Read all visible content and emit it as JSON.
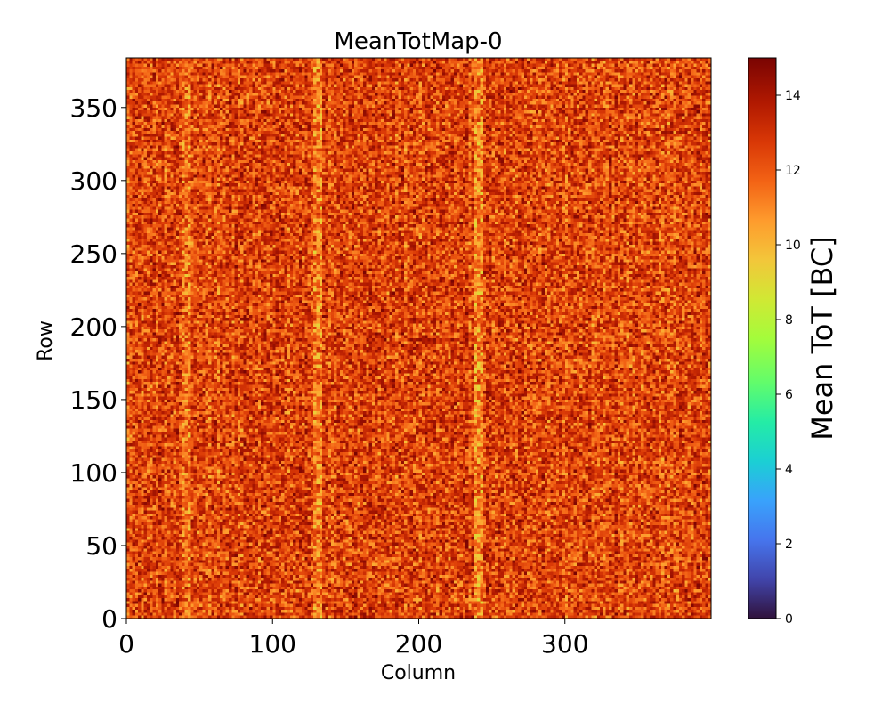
{
  "chart_data": {
    "type": "heatmap",
    "title": "MeanTotMap-0",
    "xlabel": "Column",
    "ylabel": "Row",
    "xlim": [
      0,
      400
    ],
    "ylim": [
      0,
      384
    ],
    "x_ticks": [
      "0",
      "100",
      "200",
      "300"
    ],
    "x_tick_values": [
      0,
      100,
      200,
      300
    ],
    "y_ticks": [
      "0",
      "50",
      "100",
      "150",
      "200",
      "250",
      "300",
      "350"
    ],
    "y_tick_values": [
      0,
      50,
      100,
      150,
      200,
      250,
      300,
      350
    ],
    "colorbar": {
      "label": "Mean ToT [BC]",
      "range": [
        0,
        15
      ],
      "ticks": [
        "0",
        "2",
        "4",
        "6",
        "8",
        "10",
        "12",
        "14"
      ],
      "tick_values": [
        0,
        2,
        4,
        6,
        8,
        10,
        12,
        14
      ],
      "colormap": "turbo"
    },
    "value_range_observed": [
      9,
      15
    ],
    "typical_value": 12.5,
    "bright_columns": [
      40,
      130,
      240
    ],
    "grid": false
  }
}
